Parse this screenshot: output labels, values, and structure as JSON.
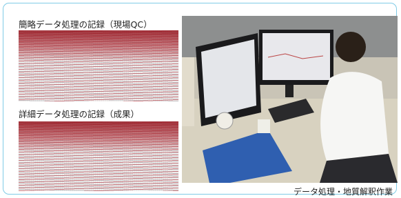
{
  "panels": [
    {
      "label": "簡略データ処理の記録（現場QC）"
    },
    {
      "label": "詳細データ処理の記録（成果）"
    }
  ],
  "photo": {
    "caption": "データ処理・地質解釈作業"
  }
}
